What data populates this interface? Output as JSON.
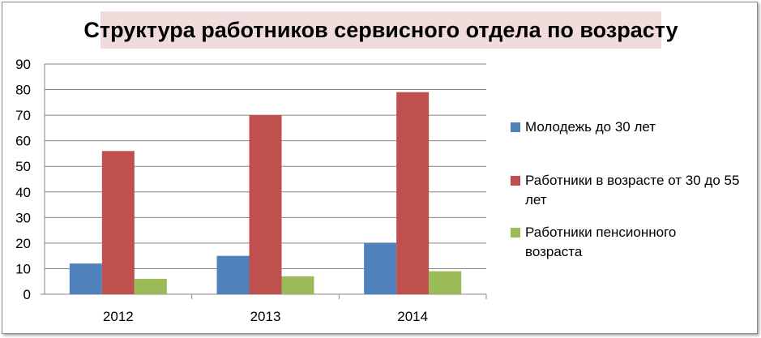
{
  "chart_data": {
    "type": "bar",
    "title": "Структура работников сервисного отдела по возрасту",
    "categories": [
      "2012",
      "2013",
      "2014"
    ],
    "series": [
      {
        "name": "Молодежь до 30 лет",
        "color": "#4f81bd",
        "values": [
          12,
          15,
          20
        ]
      },
      {
        "name": "Работники в возрасте от 30 до 55 лет",
        "color": "#c0504d",
        "values": [
          56,
          70,
          79
        ]
      },
      {
        "name": "Работники пенсионного возраста",
        "color": "#9bbb59",
        "values": [
          6,
          7,
          9
        ]
      }
    ],
    "ylim": [
      0,
      90
    ],
    "yticks": [
      0,
      10,
      20,
      30,
      40,
      50,
      60,
      70,
      80,
      90
    ],
    "grid": true,
    "legend": "right"
  }
}
